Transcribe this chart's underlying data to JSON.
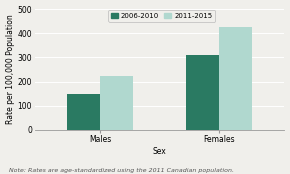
{
  "categories": [
    "Males",
    "Females"
  ],
  "series": [
    {
      "label": "2006-2010",
      "values": [
        148,
        310
      ],
      "color": "#2a7a62"
    },
    {
      "label": "2011-2015",
      "values": [
        225,
        425
      ],
      "color": "#b0d8cf"
    }
  ],
  "xlabel": "Sex",
  "ylabel": "Rate per 100,000 Population",
  "ylim": [
    0,
    500
  ],
  "yticks": [
    0,
    100,
    200,
    300,
    400,
    500
  ],
  "note": "Note: Rates are age-standardized using the 2011 Canadian population.",
  "bar_width": 0.28,
  "background_color": "#f0efeb",
  "axis_fontsize": 5.5,
  "tick_fontsize": 5.5,
  "note_fontsize": 4.5,
  "legend_fontsize": 5.0
}
